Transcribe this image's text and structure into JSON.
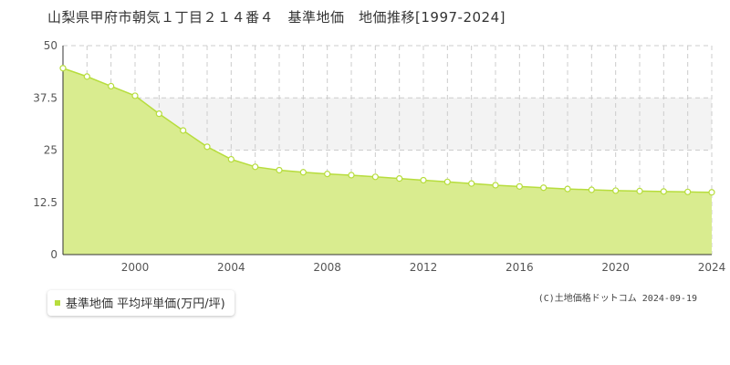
{
  "chart_data": {
    "type": "area",
    "title": "山梨県甲府市朝気１丁目２１４番４　基準地価　地価推移[1997-2024]",
    "x": [
      1997,
      1998,
      1999,
      2000,
      2001,
      2002,
      2003,
      2004,
      2005,
      2006,
      2007,
      2008,
      2009,
      2010,
      2011,
      2012,
      2013,
      2014,
      2015,
      2016,
      2017,
      2018,
      2019,
      2020,
      2021,
      2022,
      2023,
      2024
    ],
    "series": [
      {
        "name": "基準地価 平均坪単価(万円/坪)",
        "values": [
          44.6,
          42.6,
          40.3,
          38.0,
          33.7,
          29.7,
          25.8,
          22.8,
          21.0,
          20.2,
          19.7,
          19.3,
          19.0,
          18.6,
          18.2,
          17.8,
          17.4,
          17.0,
          16.6,
          16.3,
          16.0,
          15.7,
          15.5,
          15.3,
          15.2,
          15.1,
          15.0,
          14.9
        ]
      }
    ],
    "xticks": [
      "2000",
      "2004",
      "2008",
      "2012",
      "2016",
      "2020",
      "2024"
    ],
    "yticks": [
      "0",
      "12.5",
      "25",
      "37.5",
      "50"
    ],
    "xlim": [
      1997,
      2024
    ],
    "ylim": [
      0,
      50
    ],
    "grid": true,
    "legend": "bottom-left",
    "colors": {
      "fill": "#d9ec8f",
      "line": "#b7dd3d",
      "marker_fill": "#ffffff",
      "grid": "#cccccc",
      "band": "#f3f3f3"
    }
  },
  "credit": "(C)土地価格ドットコム 2024-09-19"
}
